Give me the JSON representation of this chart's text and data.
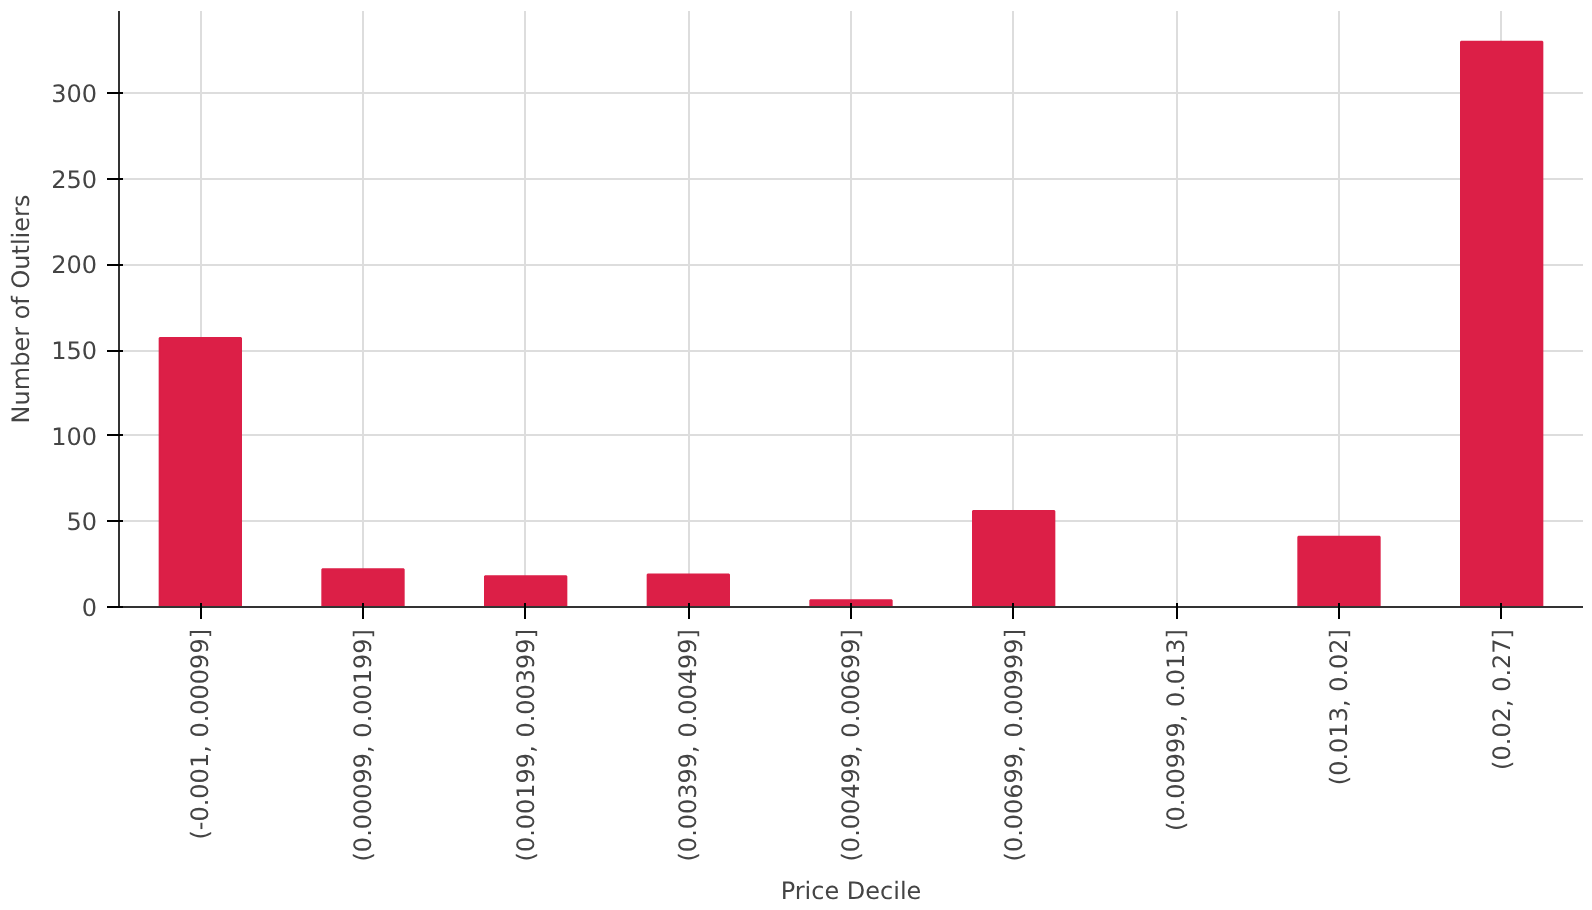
{
  "chart_data": {
    "type": "bar",
    "xlabel": "Price Decile",
    "ylabel": "Number of Outliers",
    "categories": [
      "(-0.001, 0.00099]",
      "(0.00099, 0.00199]",
      "(0.00199, 0.00399]",
      "(0.00399, 0.00499]",
      "(0.00499, 0.00699]",
      "(0.00699, 0.00999]",
      "(0.00999, 0.013]",
      "(0.013, 0.02]",
      "(0.02, 0.27]"
    ],
    "values": [
      157,
      22,
      18,
      19,
      4,
      56,
      0,
      41,
      330
    ],
    "color": "#dc1f47",
    "ylim": [
      0,
      348
    ],
    "yticks": [
      0,
      50,
      100,
      150,
      200,
      250,
      300
    ],
    "grid": true
  }
}
